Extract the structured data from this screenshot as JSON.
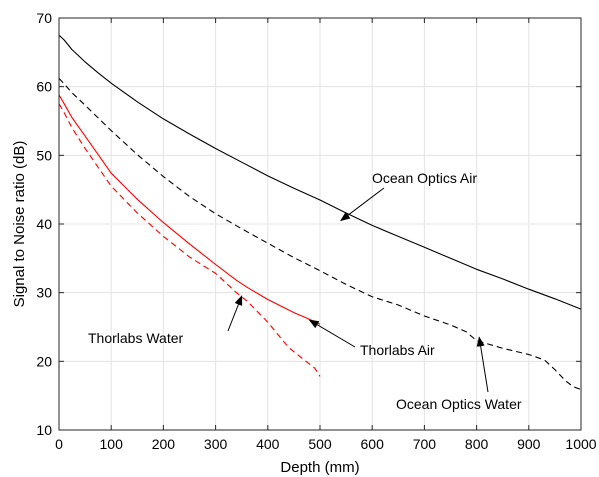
{
  "chart_data": {
    "type": "line",
    "title": "",
    "xlabel": "Depth (mm)",
    "ylabel": "Signal to Noise ratio (dB)",
    "xlim": [
      0,
      1000
    ],
    "ylim": [
      10,
      70
    ],
    "xticks": [
      0,
      100,
      200,
      300,
      400,
      500,
      600,
      700,
      800,
      900,
      1000
    ],
    "yticks": [
      10,
      20,
      30,
      40,
      50,
      60,
      70
    ],
    "xtick_labels": [
      "0",
      "100",
      "200",
      "300",
      "400",
      "500",
      "600",
      "700",
      "800",
      "900",
      "1000"
    ],
    "ytick_labels": [
      "10",
      "20",
      "30",
      "40",
      "50",
      "60",
      "70"
    ],
    "grid": true,
    "series": [
      {
        "name": "Ocean Optics Air",
        "color": "#000000",
        "style": "solid",
        "x": [
          0,
          10,
          25,
          50,
          75,
          100,
          150,
          200,
          250,
          300,
          350,
          400,
          450,
          500,
          550,
          600,
          650,
          700,
          750,
          800,
          850,
          900,
          950,
          1000
        ],
        "y": [
          67.5,
          66.8,
          65.4,
          63.6,
          62.0,
          60.5,
          57.8,
          55.3,
          53.1,
          51.0,
          49.0,
          47.0,
          45.2,
          43.5,
          41.6,
          39.8,
          38.2,
          36.6,
          35.0,
          33.4,
          32.0,
          30.5,
          29.1,
          27.6
        ]
      },
      {
        "name": "Ocean Optics Water",
        "color": "#000000",
        "style": "dashed",
        "x": [
          0,
          10,
          25,
          50,
          100,
          150,
          200,
          250,
          300,
          350,
          400,
          450,
          500,
          550,
          600,
          650,
          700,
          750,
          780,
          800,
          850,
          900,
          930,
          950,
          970,
          985,
          1000
        ],
        "y": [
          61.2,
          60.4,
          59.1,
          57.3,
          53.6,
          50.1,
          46.9,
          44.0,
          41.5,
          39.3,
          37.2,
          35.1,
          33.2,
          31.2,
          29.4,
          28.2,
          26.6,
          25.3,
          24.3,
          23.0,
          21.9,
          21.0,
          20.2,
          18.8,
          17.2,
          16.3,
          15.9
        ]
      },
      {
        "name": "Thorlabs Air",
        "color": "#ff0000",
        "style": "solid",
        "x": [
          0,
          10,
          25,
          50,
          100,
          150,
          200,
          250,
          300,
          340,
          360,
          400,
          450,
          480,
          500
        ],
        "y": [
          58.8,
          57.5,
          55.5,
          52.8,
          47.4,
          43.6,
          40.2,
          37.1,
          34.1,
          31.8,
          30.8,
          29.0,
          27.1,
          26.1,
          25.4
        ]
      },
      {
        "name": "Thorlabs Water",
        "color": "#ff0000",
        "style": "dashed",
        "x": [
          0,
          10,
          25,
          50,
          100,
          150,
          200,
          250,
          300,
          340,
          360,
          400,
          440,
          470,
          490,
          500
        ],
        "y": [
          57.5,
          56.2,
          54.0,
          51.0,
          45.5,
          41.6,
          38.2,
          35.2,
          32.8,
          30.0,
          28.8,
          25.7,
          22.0,
          20.2,
          19.0,
          17.8
        ]
      }
    ],
    "annotations": [
      {
        "text": "Ocean Optics Air",
        "arrow_to": [
          540,
          40.5
        ]
      },
      {
        "text": "Ocean Optics Water",
        "arrow_to": [
          805,
          23.5
        ]
      },
      {
        "text": "Thorlabs Air",
        "arrow_to": [
          480,
          26.0
        ]
      },
      {
        "text": "Thorlabs Water",
        "arrow_to": [
          350,
          29.5
        ]
      }
    ]
  }
}
